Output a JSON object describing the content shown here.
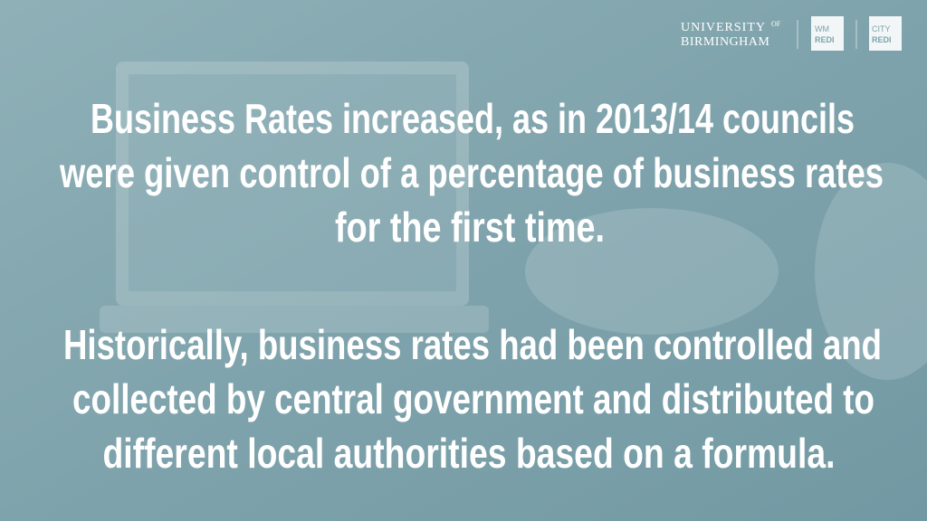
{
  "logo": {
    "university": "UNIVERSITY",
    "of": "OF",
    "birmingham": "BIRMINGHAM",
    "wm": "WM",
    "wm_redi": "REDI",
    "city": "CITY",
    "city_redi": "REDI"
  },
  "paragraphs": [
    {
      "lines": [
        "Business Rates increased, as in 2013/14 councils",
        "were given control of a percentage of business rates",
        "for the first time."
      ]
    },
    {
      "lines": [
        "Historically, business rates had been controlled and",
        "collected by central government and distributed to",
        "different local authorities based on a formula."
      ]
    }
  ]
}
